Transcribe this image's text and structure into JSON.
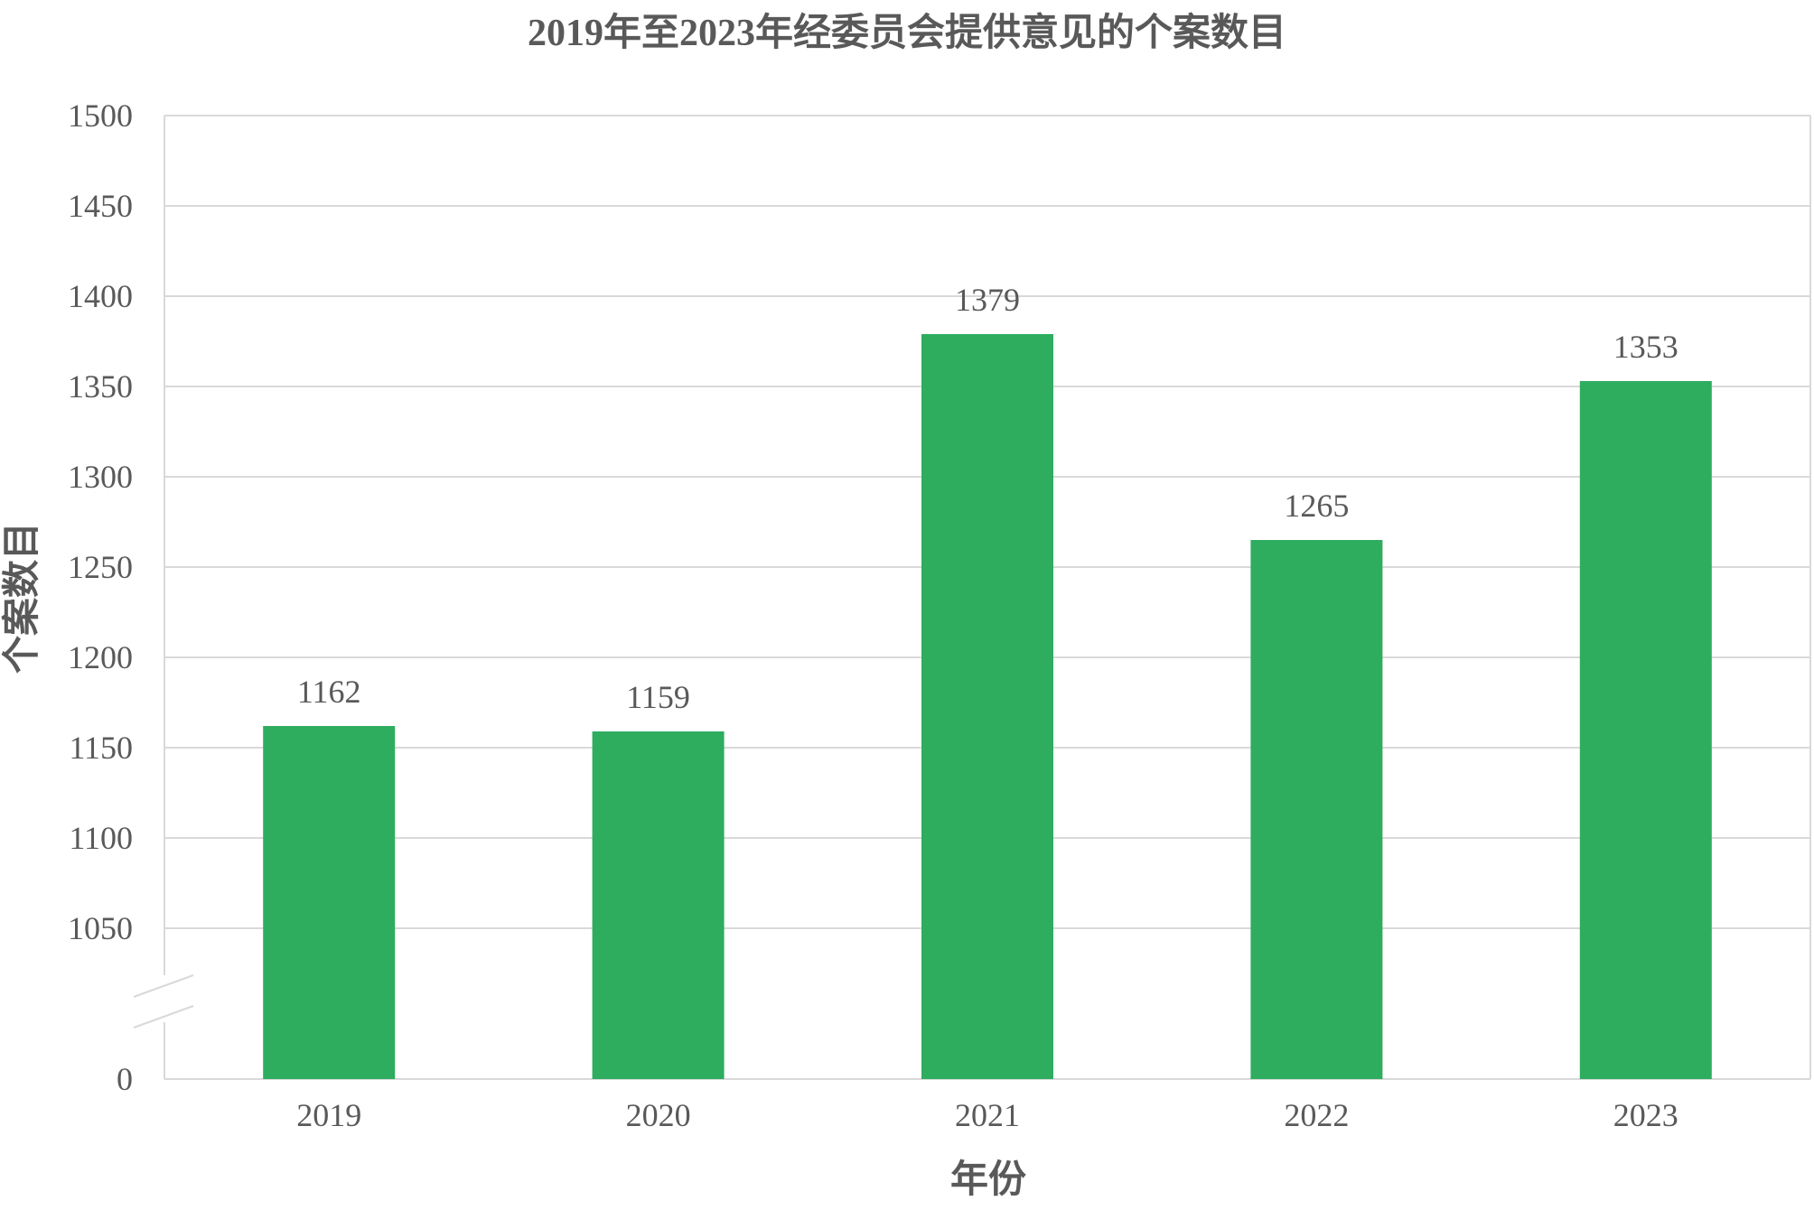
{
  "chart_data": {
    "type": "bar",
    "title": "2019年至2023年经委员会提供意见的个案数目",
    "xlabel": "年份",
    "ylabel": "个案数目",
    "categories": [
      "2019",
      "2020",
      "2021",
      "2022",
      "2023"
    ],
    "values": [
      1162,
      1159,
      1379,
      1265,
      1353
    ],
    "data_labels": [
      "1162",
      "1159",
      "1379",
      "1265",
      "1353"
    ],
    "y_ticks": [
      0,
      1050,
      1100,
      1150,
      1200,
      1250,
      1300,
      1350,
      1400,
      1450,
      1500
    ],
    "y_tick_labels": [
      "0",
      "1050",
      "1100",
      "1150",
      "1200",
      "1250",
      "1300",
      "1350",
      "1400",
      "1450",
      "1500"
    ],
    "ylim": [
      0,
      1500
    ],
    "y_axis_break": [
      0,
      1050
    ],
    "grid": true,
    "legend": "none",
    "colors": {
      "bar": "#2EAD5F",
      "grid": "#D9D9D9",
      "text": "#595959"
    }
  }
}
